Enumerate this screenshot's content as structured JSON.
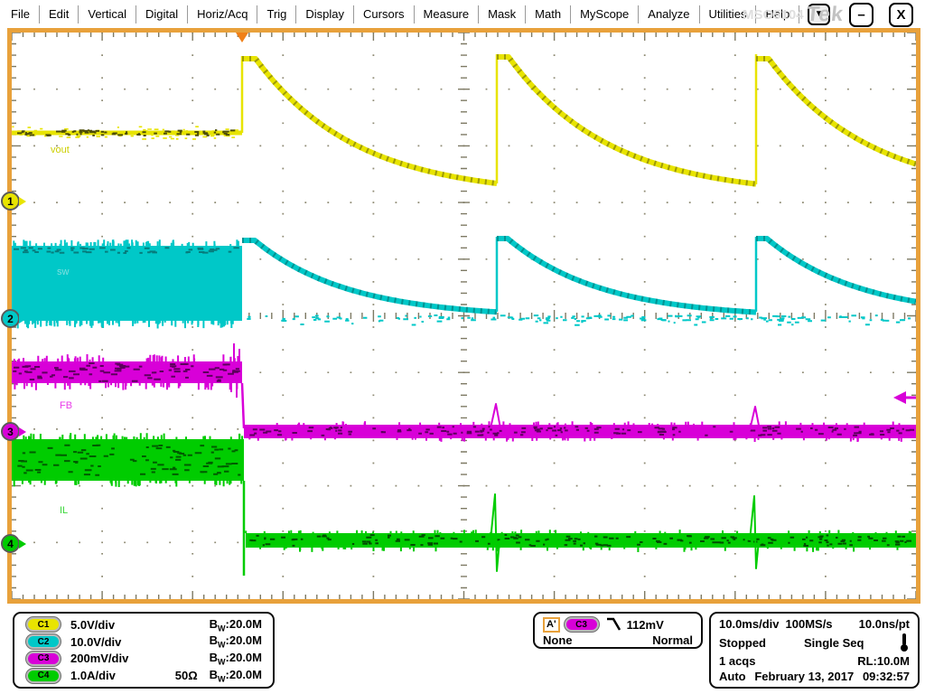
{
  "menu": {
    "items": [
      "File",
      "Edit",
      "Vertical",
      "Digital",
      "Horiz/Acq",
      "Trig",
      "Display",
      "Cursors",
      "Measure",
      "Mask",
      "Math",
      "MyScope",
      "Analyze",
      "Utilities",
      "Help"
    ],
    "dropdown_label": "▼"
  },
  "titlebar": {
    "model": "MSO5104",
    "logo": "Tek",
    "minimize_label": "–",
    "close_label": "X"
  },
  "labels": {
    "bw_b": "B",
    "bw_w": "W",
    "bw_colon": ":"
  },
  "channels": [
    {
      "id": "C1",
      "marker": "1",
      "label": "vout",
      "scale": "5.0V/div",
      "termination": "",
      "bandwidth": "20.0M",
      "color": "#e8e400",
      "label_color": "#cccf00"
    },
    {
      "id": "C2",
      "marker": "2",
      "label": "sw",
      "scale": "10.0V/div",
      "termination": "",
      "bandwidth": "20.0M",
      "color": "#00c8c8",
      "label_color": "#7fe0e0"
    },
    {
      "id": "C3",
      "marker": "3",
      "label": "FB",
      "scale": "200mV/div",
      "termination": "",
      "bandwidth": "20.0M",
      "color": "#d800d8",
      "label_color": "#e83ce8"
    },
    {
      "id": "C4",
      "marker": "4",
      "label": "IL",
      "scale": "1.0A/div",
      "termination": "50Ω",
      "bandwidth": "20.0M",
      "color": "#00cc00",
      "label_color": "#3cd83c"
    }
  ],
  "trigger": {
    "source_prefix": "A'",
    "source": "C3",
    "level": "112mV",
    "mode_left": "None",
    "mode_right": "Normal",
    "level_color": "#d800d8"
  },
  "horizontal": {
    "timebase": "10.0ms/div",
    "sample_rate": "100MS/s",
    "resolution": "10.0ns/pt",
    "acq_state": "Stopped",
    "acq_mode": "Single Seq",
    "acq_count": "1 acqs",
    "record_length": "RL:10.0M",
    "trigger_mode": "Auto",
    "date": "February 13, 2017",
    "time": "09:32:57"
  },
  "frame_color": "#e8a13b"
}
